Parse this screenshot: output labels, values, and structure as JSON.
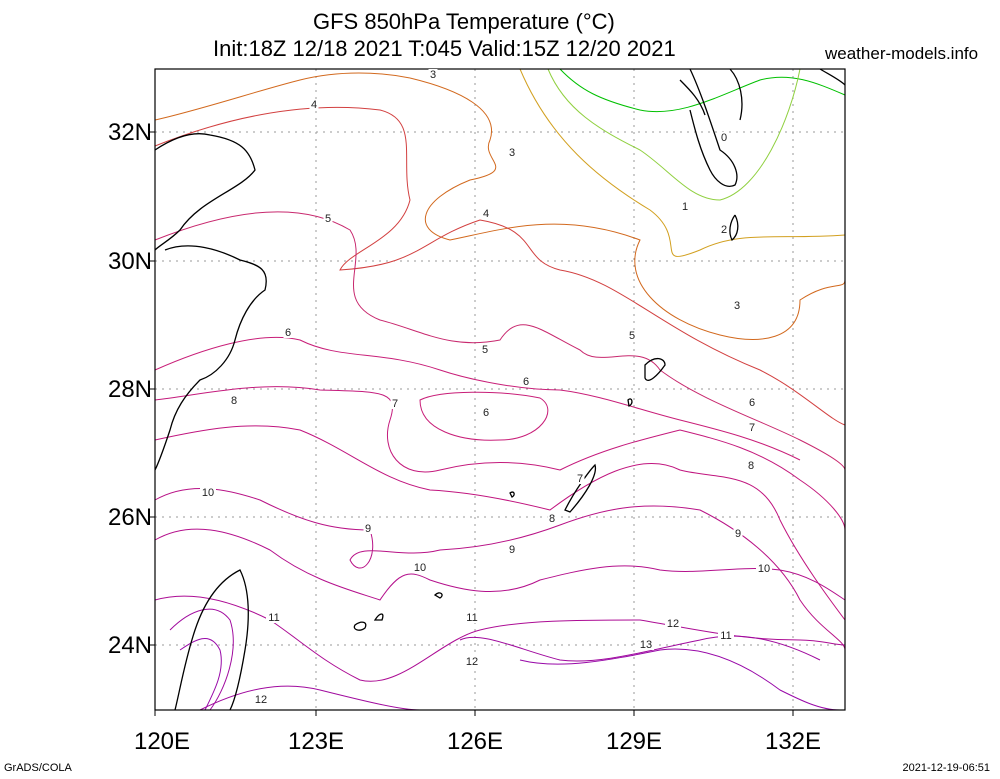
{
  "title_line1": "GFS 850hPa Temperature (°C)",
  "title_line2": "Init:18Z 12/18 2021 T:045 Valid:15Z 12/20 2021",
  "site": "weather-models.info",
  "footer_left": "GrADS/COLA",
  "footer_right": "2021-12-19-06:51",
  "x_ticks": [
    "120E",
    "123E",
    "126E",
    "129E",
    "132E"
  ],
  "y_ticks": [
    "32N",
    "30N",
    "28N",
    "26N",
    "24N"
  ],
  "contour_labels": [
    {
      "text": "3",
      "color": "#d2691e"
    },
    {
      "text": "4",
      "color": "#d24040"
    },
    {
      "text": "3",
      "color": "#d2691e"
    },
    {
      "text": "0",
      "color": "#80d060"
    },
    {
      "text": "1",
      "color": "#a0d040"
    },
    {
      "text": "4",
      "color": "#d24040"
    },
    {
      "text": "5",
      "color": "#c8286e"
    },
    {
      "text": "2",
      "color": "#d2a020"
    },
    {
      "text": "3",
      "color": "#d2691e"
    },
    {
      "text": "6",
      "color": "#c81e78"
    },
    {
      "text": "5",
      "color": "#c8286e"
    },
    {
      "text": "5",
      "color": "#c8286e"
    },
    {
      "text": "6",
      "color": "#c81e78"
    },
    {
      "text": "8",
      "color": "#c0147e"
    },
    {
      "text": "7",
      "color": "#c41a7c"
    },
    {
      "text": "6",
      "color": "#c81e78"
    },
    {
      "text": "6",
      "color": "#c81e78"
    },
    {
      "text": "7",
      "color": "#c41a7c"
    },
    {
      "text": "8",
      "color": "#c0147e"
    },
    {
      "text": "10",
      "color": "#b4108c"
    },
    {
      "text": "7",
      "color": "#c41a7c"
    },
    {
      "text": "8",
      "color": "#c0147e"
    },
    {
      "text": "9",
      "color": "#b81286"
    },
    {
      "text": "9",
      "color": "#b81286"
    },
    {
      "text": "9",
      "color": "#b81286"
    },
    {
      "text": "10",
      "color": "#b4108c"
    },
    {
      "text": "10",
      "color": "#b4108c"
    },
    {
      "text": "11",
      "color": "#ac0c94"
    },
    {
      "text": "11",
      "color": "#ac0c94"
    },
    {
      "text": "11",
      "color": "#ac0c94"
    },
    {
      "text": "12",
      "color": "#a00a9e"
    },
    {
      "text": "12",
      "color": "#a00a9e"
    },
    {
      "text": "13",
      "color": "#9808a8"
    },
    {
      "text": "12",
      "color": "#a00a9e"
    }
  ]
}
